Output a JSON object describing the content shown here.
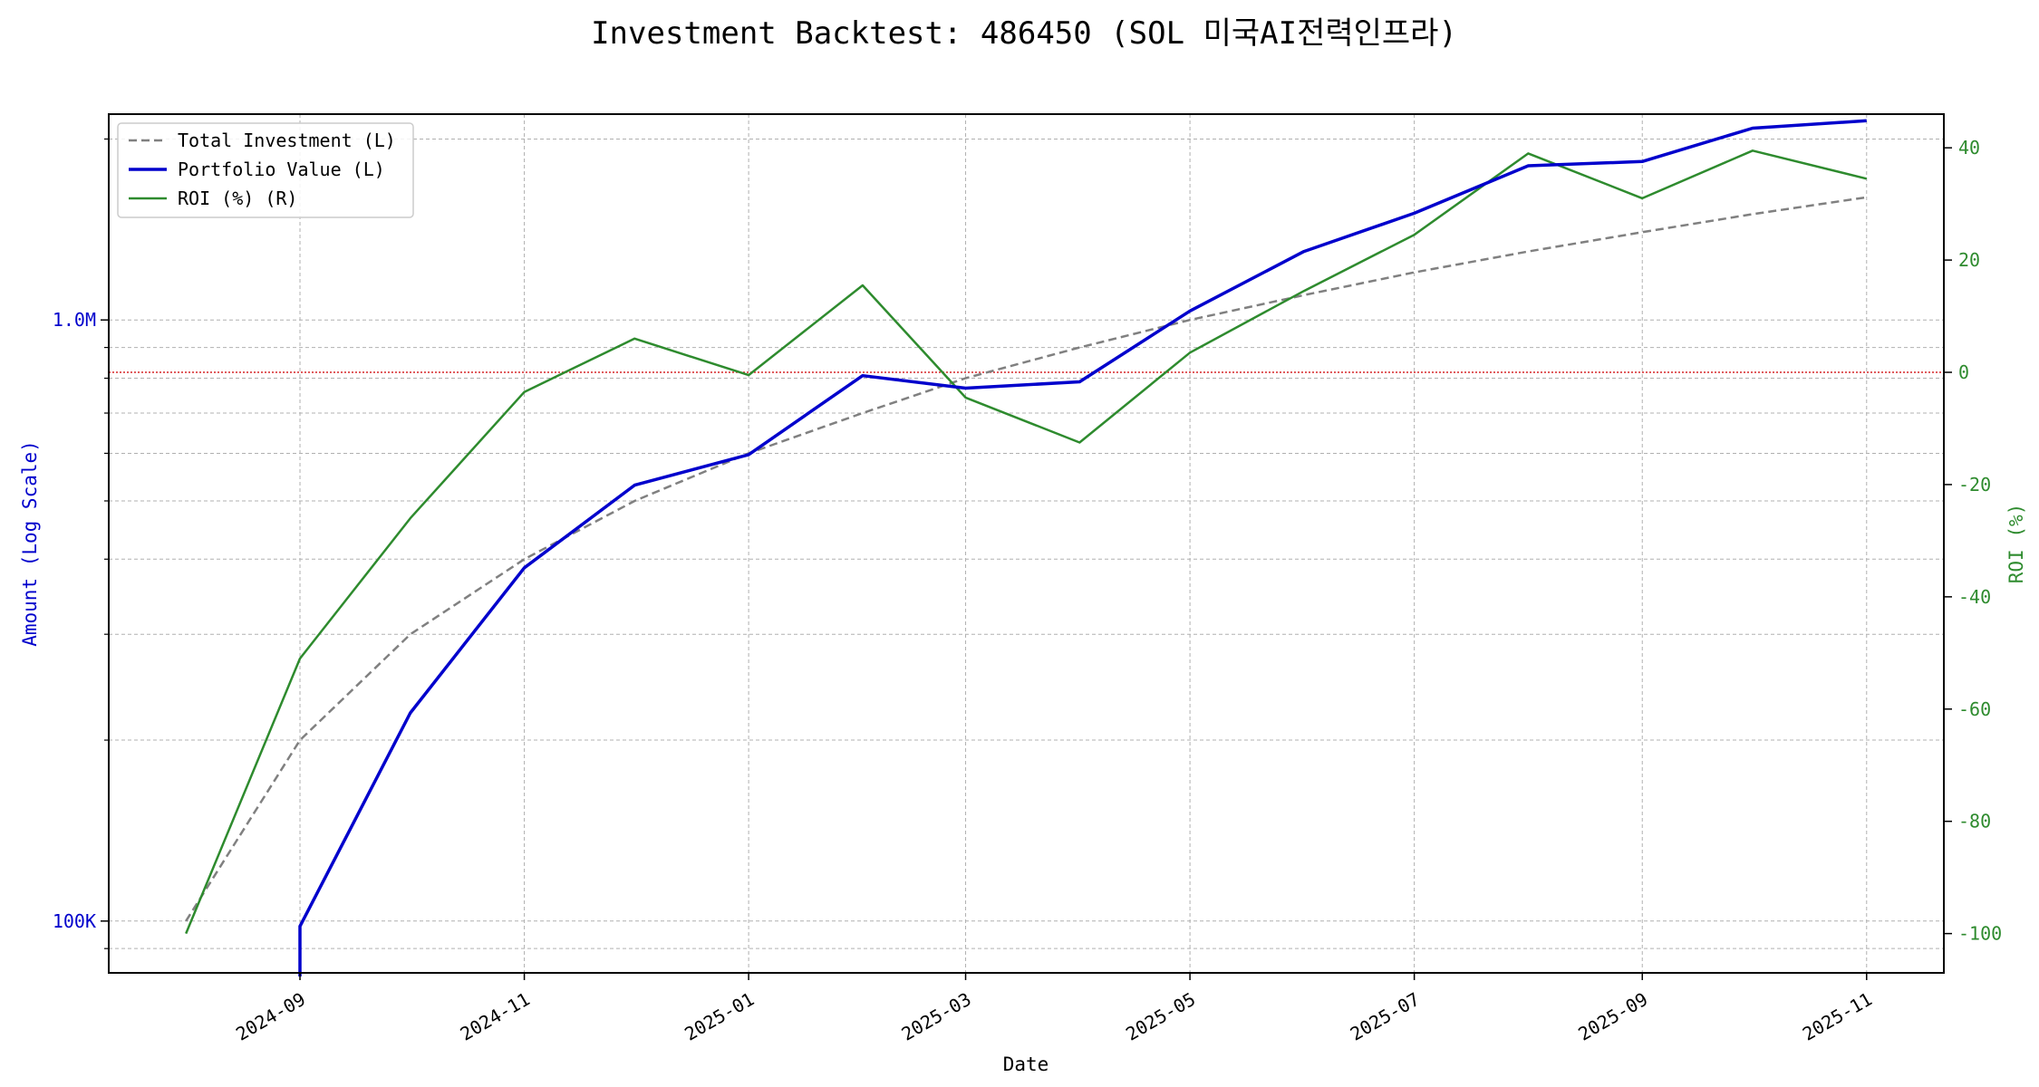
{
  "chart_data": {
    "type": "line",
    "title": "Investment Backtest: 486450 (SOL 미국AI전력인프라)",
    "xlabel": "Date",
    "ylabel_left": "Amount (Log Scale)",
    "ylabel_right": "ROI (%)",
    "x": [
      "2024-08-01",
      "2024-09-01",
      "2024-10-01",
      "2024-11-01",
      "2024-12-01",
      "2025-01-01",
      "2025-02-01",
      "2025-03-01",
      "2025-04-01",
      "2025-05-01",
      "2025-06-01",
      "2025-07-01",
      "2025-08-01",
      "2025-09-01",
      "2025-10-01",
      "2025-11-01"
    ],
    "x_ticks": [
      "2024-09",
      "2024-11",
      "2025-01",
      "2025-03",
      "2025-05",
      "2025-07",
      "2025-09",
      "2025-11"
    ],
    "x_range": [
      "2024-07-11",
      "2025-11-22"
    ],
    "y_left_scale": "log",
    "y_left_range": [
      82000,
      2200000
    ],
    "y_left_ticks": [
      {
        "value": 100000,
        "label": "100K"
      },
      {
        "value": 1000000,
        "label": "1.0M"
      }
    ],
    "y_right_range": [
      -107,
      46
    ],
    "y_right_ticks": [
      -100,
      -80,
      -60,
      -40,
      -20,
      0,
      20,
      40
    ],
    "zero_line_color": "#d62728",
    "grid": true,
    "legend_position": "top-left",
    "series": [
      {
        "name": "Total Investment (L)",
        "axis": "left",
        "style": "dashed",
        "color": "#808080",
        "values": [
          100000,
          200000,
          300000,
          400000,
          500000,
          600000,
          700000,
          800000,
          900000,
          1000000,
          1100000,
          1200000,
          1300000,
          1400000,
          1500000,
          1600000
        ]
      },
      {
        "name": "Portfolio Value (L)",
        "axis": "left",
        "style": "solid",
        "color": "#0000cc",
        "values": [
          null,
          98000,
          222000,
          387000,
          531000,
          597000,
          808000,
          770000,
          789000,
          1035000,
          1300000,
          1505000,
          1805000,
          1835000,
          2085000,
          2145000
        ]
      },
      {
        "name": "ROI (%) (R)",
        "axis": "right",
        "style": "solid",
        "color": "#2e8b2e",
        "values": [
          -100,
          -51,
          -26,
          -3.5,
          6,
          -0.5,
          15.5,
          -4.5,
          -12.5,
          3.5,
          14.5,
          24.5,
          39,
          31,
          39.5,
          34.5
        ]
      }
    ]
  }
}
